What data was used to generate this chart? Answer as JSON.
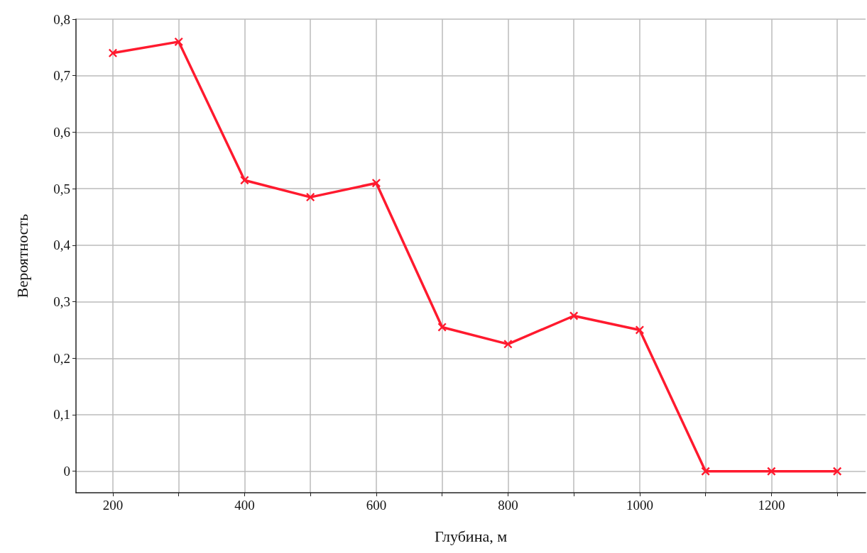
{
  "chart_data": {
    "type": "line",
    "xlabel": "Глубина, м",
    "ylabel": "Вероятность",
    "x": [
      200,
      300,
      400,
      500,
      600,
      700,
      800,
      900,
      1000,
      1100,
      1200,
      1300
    ],
    "series": [
      {
        "color": "#ff1a2e",
        "values": [
          0.74,
          0.76,
          0.515,
          0.485,
          0.51,
          0.255,
          0.225,
          0.275,
          0.25,
          0,
          0,
          0
        ]
      }
    ],
    "xlim": [
      144,
      1343
    ],
    "xticks": [
      200,
      {
        "value": 300,
        "label": null
      },
      400,
      {
        "value": 500,
        "label": null
      },
      600,
      {
        "value": 700,
        "label": null
      },
      800,
      {
        "value": 900,
        "label": null
      },
      1000,
      {
        "value": 1100,
        "label": null
      },
      1200,
      {
        "value": 1300,
        "label": null
      }
    ],
    "ylim": [
      -0.038,
      0.8
    ],
    "yticks": [
      0,
      {
        "value": 0.1,
        "label": "0,1"
      },
      {
        "value": 0.2,
        "label": "0,2"
      },
      {
        "value": 0.3,
        "label": "0,3"
      },
      {
        "value": 0.4,
        "label": "0,4"
      },
      {
        "value": 0.5,
        "label": "0,5"
      },
      {
        "value": 0.6,
        "label": "0,6"
      },
      {
        "value": 0.7,
        "label": "0,7"
      },
      {
        "value": 0.8,
        "label": "0,8"
      }
    ],
    "grid": true,
    "marker": "cross",
    "line_style": "solid"
  }
}
